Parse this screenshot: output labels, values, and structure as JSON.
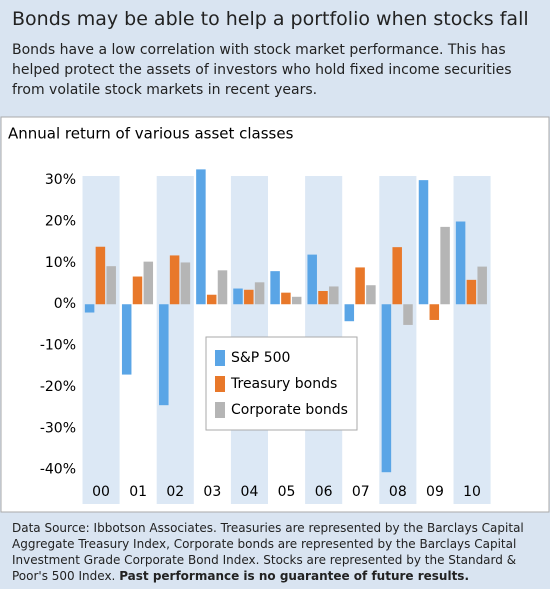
{
  "title": "Bonds may be able to help a portfolio when stocks fall",
  "subtitle": "Bonds have a low correlation with stock market performance. This has helped protect the assets of investors who hold fixed income securities from volatile stock markets in recent years.",
  "chart_data": {
    "type": "bar",
    "title": "Annual return of various asset classes",
    "categories": [
      "00",
      "01",
      "02",
      "03",
      "04",
      "05",
      "06",
      "07",
      "08",
      "09",
      "10"
    ],
    "series": [
      {
        "name": "S&P 500",
        "color": "#5aa5e6",
        "values": [
          -2,
          -17,
          -24.4,
          32.6,
          3.8,
          8,
          12,
          -4.1,
          -40.6,
          30,
          20
        ]
      },
      {
        "name": "Treasury bonds",
        "color": "#e8782a",
        "values": [
          13.9,
          6.7,
          11.8,
          2.3,
          3.5,
          2.8,
          3.2,
          8.9,
          13.8,
          -3.8,
          5.9
        ]
      },
      {
        "name": "Corporate bonds",
        "color": "#b5b5b5",
        "values": [
          9.2,
          10.3,
          10.1,
          8.2,
          5.3,
          1.8,
          4.3,
          4.6,
          -5,
          18.7,
          9.1
        ]
      }
    ],
    "ylim": [
      -42,
      31
    ],
    "yticks": [
      {
        "value": 30,
        "label": "30%"
      },
      {
        "value": 20,
        "label": "20%"
      },
      {
        "value": 10,
        "label": "10%"
      },
      {
        "value": 0,
        "label": "0%"
      },
      {
        "value": -10,
        "label": "-10%"
      },
      {
        "value": -20,
        "label": "-20%"
      },
      {
        "value": -30,
        "label": "-30%"
      },
      {
        "value": -40,
        "label": "-40%"
      }
    ]
  },
  "footnote": {
    "text": "Data Source: Ibbotson Associates. Treasuries are represented by the Barclays Capital Aggregate Treasury Index, Corporate bonds are represented by the Barclays Capital Investment Grade Corporate Bond Index. Stocks are represented by the Standard & Poor's 500 Index.",
    "bold": "Past performance is no guarantee of future results."
  }
}
